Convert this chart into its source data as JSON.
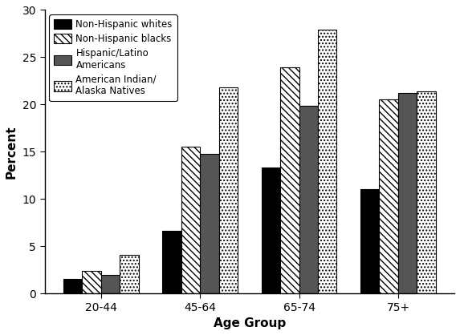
{
  "categories": [
    "20-44",
    "45-64",
    "65-74",
    "75+"
  ],
  "series_names": [
    "Non-Hispanic whites",
    "Non-Hispanic blacks",
    "Hispanic/Latino Americans",
    "American Indian/Alaska Natives"
  ],
  "series_values": [
    [
      1.5,
      6.6,
      13.3,
      11.0
    ],
    [
      2.4,
      15.5,
      23.9,
      20.5
    ],
    [
      2.0,
      14.8,
      19.9,
      21.2
    ],
    [
      4.1,
      21.8,
      27.9,
      21.4
    ]
  ],
  "legend_labels": [
    "Non-Hispanic whites",
    "Non-Hispanic blacks",
    "Hispanic/Latino\nAmericans",
    "American Indian/\nAlaska Natives"
  ],
  "bar_colors": [
    "#000000",
    "#ffffff",
    "#555555",
    "#ffffff"
  ],
  "hatch_patterns": [
    "",
    "\\\\\\\\",
    "",
    "...."
  ],
  "bar_edge_colors": [
    "#000000",
    "#000000",
    "#000000",
    "#000000"
  ],
  "xlabel": "Age Group",
  "ylabel": "Percent",
  "ylim": [
    0,
    30
  ],
  "yticks": [
    0,
    5,
    10,
    15,
    20,
    25,
    30
  ],
  "figsize": [
    5.73,
    4.18
  ],
  "dpi": 100,
  "bar_width": 0.19
}
